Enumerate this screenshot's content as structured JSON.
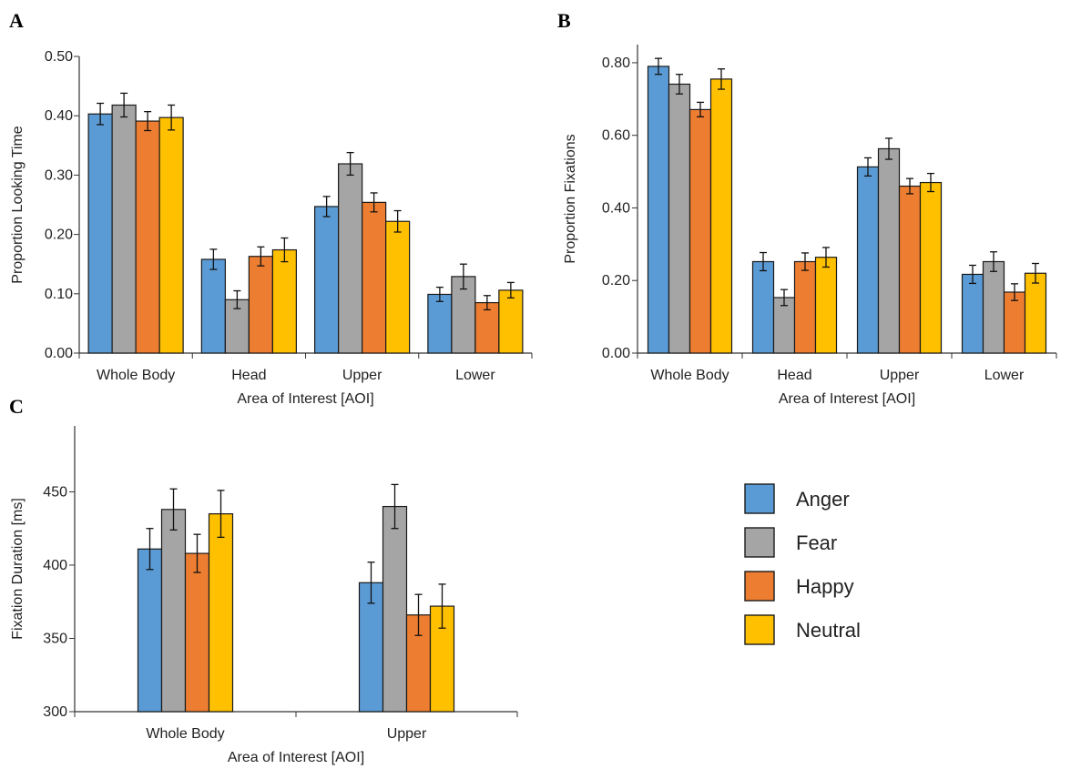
{
  "panels": [
    "A",
    "B",
    "C"
  ],
  "series_colors": {
    "Anger": "#5b9bd5",
    "Fear": "#a5a5a5",
    "Happy": "#ed7d31",
    "Neutral": "#ffc000"
  },
  "legend": [
    "Anger",
    "Fear",
    "Happy",
    "Neutral"
  ],
  "chart_data": [
    {
      "panel": "A",
      "type": "bar",
      "categories": [
        "Whole Body",
        "Head",
        "Upper",
        "Lower"
      ],
      "series": [
        {
          "name": "Anger",
          "values": [
            0.403,
            0.158,
            0.247,
            0.099
          ],
          "errors": [
            0.018,
            0.017,
            0.017,
            0.012
          ]
        },
        {
          "name": "Fear",
          "values": [
            0.418,
            0.09,
            0.319,
            0.129
          ],
          "errors": [
            0.02,
            0.015,
            0.019,
            0.021
          ]
        },
        {
          "name": "Happy",
          "values": [
            0.391,
            0.163,
            0.254,
            0.085
          ],
          "errors": [
            0.016,
            0.016,
            0.016,
            0.012
          ]
        },
        {
          "name": "Neutral",
          "values": [
            0.397,
            0.174,
            0.222,
            0.106
          ],
          "errors": [
            0.021,
            0.02,
            0.018,
            0.013
          ]
        }
      ],
      "ylim": [
        0,
        0.5
      ],
      "yticks": [
        "0.00",
        "0.10",
        "0.20",
        "0.30",
        "0.40",
        "0.50"
      ],
      "xlabel": "Area of Interest [AOI]",
      "ylabel": "Proportion Looking Time"
    },
    {
      "panel": "B",
      "type": "bar",
      "categories": [
        "Whole Body",
        "Head",
        "Upper",
        "Lower"
      ],
      "series": [
        {
          "name": "Anger",
          "values": [
            0.79,
            0.252,
            0.513,
            0.217
          ],
          "errors": [
            0.022,
            0.025,
            0.025,
            0.025
          ]
        },
        {
          "name": "Fear",
          "values": [
            0.741,
            0.153,
            0.563,
            0.252
          ],
          "errors": [
            0.027,
            0.022,
            0.029,
            0.027
          ]
        },
        {
          "name": "Happy",
          "values": [
            0.671,
            0.252,
            0.46,
            0.168
          ],
          "errors": [
            0.02,
            0.024,
            0.021,
            0.023
          ]
        },
        {
          "name": "Neutral",
          "values": [
            0.755,
            0.264,
            0.47,
            0.22
          ],
          "errors": [
            0.028,
            0.027,
            0.025,
            0.027
          ]
        }
      ],
      "ylim": [
        0,
        0.85
      ],
      "yticks": [
        "0.00",
        "0.20",
        "0.40",
        "0.60",
        "0.80"
      ],
      "xlabel": "Area of Interest [AOI]",
      "ylabel": "Proportion Fixations"
    },
    {
      "panel": "C",
      "type": "bar",
      "categories": [
        "Whole Body",
        "Upper"
      ],
      "series": [
        {
          "name": "Anger",
          "values": [
            411,
            388
          ],
          "errors": [
            14,
            14
          ]
        },
        {
          "name": "Fear",
          "values": [
            438,
            440
          ],
          "errors": [
            14,
            15
          ]
        },
        {
          "name": "Happy",
          "values": [
            408,
            366
          ],
          "errors": [
            13,
            14
          ]
        },
        {
          "name": "Neutral",
          "values": [
            435,
            372
          ],
          "errors": [
            16,
            15
          ]
        }
      ],
      "ylim": [
        300,
        495
      ],
      "yticks": [
        "300",
        "350",
        "400",
        "450"
      ],
      "xlabel": "Area of Interest [AOI]",
      "ylabel": "Fixation Duration [ms]"
    }
  ]
}
